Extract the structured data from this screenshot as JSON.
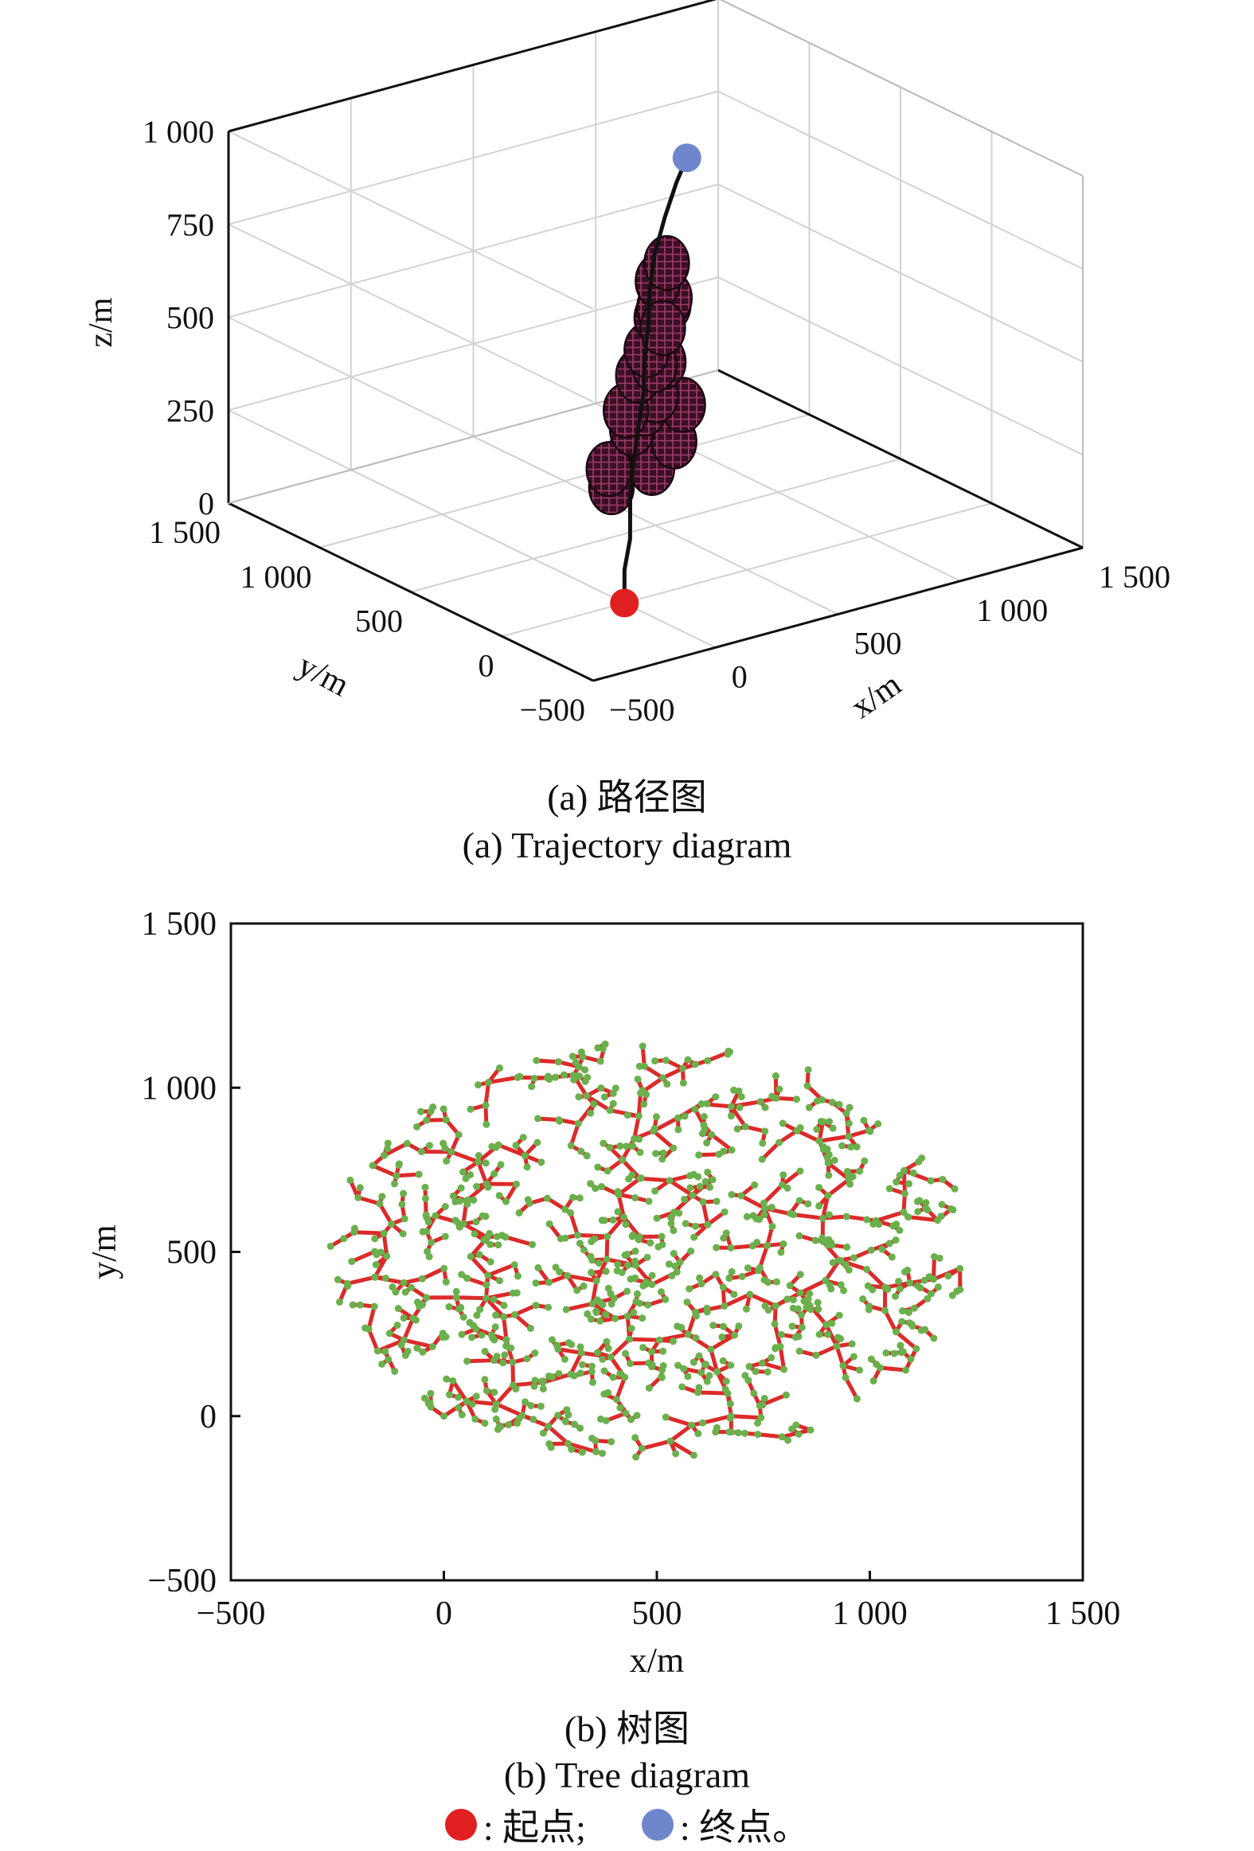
{
  "chart_data": [
    {
      "type": "scatter",
      "title": "",
      "axes": {
        "x": {
          "label": "x/m",
          "ticks": [
            "-500",
            "0",
            "500",
            "1 000",
            "1 500"
          ],
          "range": [
            -500,
            1500
          ]
        },
        "y": {
          "label": "y/m",
          "ticks": [
            "-500",
            "0",
            "500",
            "1 000",
            "1 500"
          ],
          "range": [
            -500,
            1500
          ]
        },
        "z": {
          "label": "z/m",
          "ticks": [
            "0",
            "250",
            "500",
            "750",
            "1 000"
          ],
          "range": [
            0,
            1000
          ]
        }
      },
      "grid": true,
      "start_point": {
        "x": 0,
        "y": 0,
        "z": 0,
        "color": "#e02020"
      },
      "end_point": {
        "x": 1000,
        "y": 1000,
        "z": 780,
        "color": "#6f86cc"
      },
      "path": [
        [
          0,
          0,
          0
        ],
        [
          60,
          80,
          60
        ],
        [
          120,
          130,
          120
        ],
        [
          180,
          210,
          200
        ],
        [
          260,
          300,
          260
        ],
        [
          340,
          380,
          320
        ],
        [
          420,
          460,
          380
        ],
        [
          500,
          560,
          440
        ],
        [
          560,
          620,
          500
        ],
        [
          640,
          720,
          560
        ],
        [
          720,
          800,
          620
        ],
        [
          820,
          880,
          680
        ],
        [
          920,
          950,
          740
        ],
        [
          1000,
          1000,
          780
        ]
      ],
      "obstacles": [
        [
          230,
          380,
          180
        ],
        [
          380,
          470,
          230
        ],
        [
          500,
          520,
          150
        ],
        [
          620,
          560,
          190
        ],
        [
          700,
          620,
          260
        ],
        [
          160,
          300,
          260
        ],
        [
          300,
          360,
          330
        ],
        [
          440,
          480,
          330
        ],
        [
          560,
          580,
          320
        ],
        [
          680,
          700,
          360
        ],
        [
          200,
          260,
          420
        ],
        [
          340,
          380,
          460
        ],
        [
          480,
          480,
          440
        ],
        [
          620,
          640,
          470
        ],
        [
          760,
          780,
          480
        ],
        [
          300,
          280,
          560
        ],
        [
          460,
          440,
          580
        ],
        [
          560,
          560,
          560
        ],
        [
          720,
          720,
          520
        ],
        [
          420,
          380,
          700
        ],
        [
          560,
          520,
          690
        ],
        [
          380,
          300,
          600
        ]
      ]
    },
    {
      "type": "scatter",
      "title": "",
      "xlabel": "x/m",
      "ylabel": "y/m",
      "xlim": [
        -500,
        1500
      ],
      "ylim": [
        -500,
        1500
      ],
      "xticks": [
        "-500",
        "0",
        "500",
        "1 000",
        "1 500"
      ],
      "yticks": [
        "-500",
        "0",
        "500",
        "1 000",
        "1 500"
      ],
      "grid": false,
      "series": [
        {
          "color": "#dc2a2a"
        },
        {
          "color": "#6ab04c"
        }
      ],
      "node_count": 900
    }
  ],
  "captions": {
    "a_cn": "(a) 路径图",
    "a_en": "(a) Trajectory diagram",
    "b_cn": "(b) 树图",
    "b_en": "(b) Tree diagram"
  },
  "legend": {
    "start_label": ": 起点;",
    "end_label": ": 终点。",
    "start_color": "#e02020",
    "end_color": "#6f86cc"
  }
}
